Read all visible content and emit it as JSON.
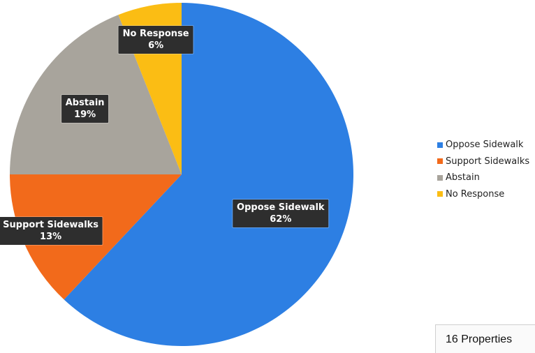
{
  "chart_data": {
    "type": "pie",
    "title": "",
    "slices": [
      {
        "label": "Oppose Sidewalk",
        "value": 62,
        "pct_label": "62%",
        "color": "#2d7fe3"
      },
      {
        "label": "Support Sidewalks",
        "value": 13,
        "pct_label": "13%",
        "color": "#f26a1b"
      },
      {
        "label": "Abstain",
        "value": 19,
        "pct_label": "19%",
        "color": "#a8a49c"
      },
      {
        "label": "No Response",
        "value": 6,
        "pct_label": "6%",
        "color": "#fbbd14"
      }
    ],
    "start_angle_deg": 0,
    "direction": "clockwise",
    "legend_position": "right"
  },
  "footnote": "16 Properties"
}
